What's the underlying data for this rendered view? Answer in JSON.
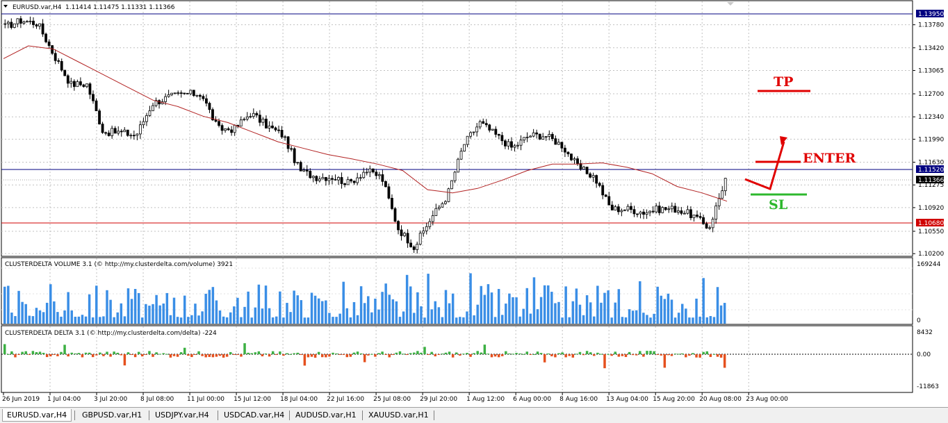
{
  "window": {
    "title": "EURUSD.var,H4",
    "ohlc": "1.11414 1.11475 1.11331 1.11366"
  },
  "main_price_axis": {
    "ticks": [
      "1.13780",
      "1.13420",
      "1.13065",
      "1.12700",
      "1.12340",
      "1.11990",
      "1.11630",
      "1.11275",
      "1.10920",
      "1.10550",
      "1.10200"
    ],
    "labels": [
      {
        "text": "1.13950",
        "color": "#000080"
      },
      {
        "text": "1.11520",
        "color": "#000080"
      },
      {
        "text": "1.11366",
        "color": "#000000"
      },
      {
        "text": "1.10680",
        "color": "#d00000"
      }
    ]
  },
  "volume_panel": {
    "title": "CLUSTERDELTA VOLUME 3.1 (© http://my.clusterdelta.com/volume) 3921",
    "axis_max": "169244",
    "axis_min": "0"
  },
  "delta_panel": {
    "title": "CLUSTERDELTA DELTA 3.1 (© http://my.clusterdelta.com/delta) -224",
    "axis_top": "8432",
    "axis_zero": "0.00",
    "axis_bottom": "-11863"
  },
  "time_axis": [
    "26 Jun 2019",
    "1 Jul 04:00",
    "3 Jul 20:00",
    "8 Jul 08:00",
    "11 Jul 00:00",
    "15 Jul 12:00",
    "18 Jul 04:00",
    "22 Jul 16:00",
    "25 Jul 08:00",
    "29 Jul 20:00",
    "1 Aug 12:00",
    "6 Aug 00:00",
    "8 Aug 16:00",
    "13 Aug 04:00",
    "15 Aug 20:00",
    "20 Aug 08:00",
    "23 Aug 00:00"
  ],
  "annotations": {
    "tp": "TP",
    "enter": "ENTER",
    "sl": "SL"
  },
  "tabs": [
    "EURUSD.var,H4",
    "GBPUSD.var,H1",
    "USDJPY.var,H4",
    "USDCAD.var,H4",
    "AUDUSD.var,H1",
    "XAUUSD.var,H1"
  ],
  "colors": {
    "candle": "#000000",
    "moving_average": "#b22222",
    "volume_bar": "#3a8ee6",
    "delta_positive": "#3cb043",
    "delta_negative": "#e5501e",
    "resistance_line": "#000080",
    "support_line": "#d00000",
    "annotation_red": "#e00000",
    "annotation_green": "#2db82d"
  },
  "chart_data": {
    "type": "candlestick",
    "symbol": "EURUSD.var",
    "timeframe": "H4",
    "horizontal_levels": [
      1.1395,
      1.1152,
      1.1068
    ],
    "current_price": 1.11366,
    "close_path": [
      {
        "t": "26 Jun 2019",
        "price": 1.1375
      },
      {
        "t": "27 Jun",
        "price": 1.1385
      },
      {
        "t": "28 Jun",
        "price": 1.138
      },
      {
        "t": "1 Jul 04:00",
        "price": 1.133
      },
      {
        "t": "2 Jul",
        "price": 1.1285
      },
      {
        "t": "3 Jul 20:00",
        "price": 1.1285
      },
      {
        "t": "5 Jul",
        "price": 1.121
      },
      {
        "t": "8 Jul 08:00",
        "price": 1.121
      },
      {
        "t": "9 Jul",
        "price": 1.1205
      },
      {
        "t": "10 Jul",
        "price": 1.1255
      },
      {
        "t": "11 Jul 00:00",
        "price": 1.1265
      },
      {
        "t": "12 Jul",
        "price": 1.127
      },
      {
        "t": "15 Jul 12:00",
        "price": 1.127
      },
      {
        "t": "16 Jul",
        "price": 1.1215
      },
      {
        "t": "17 Jul",
        "price": 1.1215
      },
      {
        "t": "18 Jul 04:00",
        "price": 1.124
      },
      {
        "t": "19 Jul",
        "price": 1.122
      },
      {
        "t": "22 Jul 16:00",
        "price": 1.1205
      },
      {
        "t": "23 Jul",
        "price": 1.115
      },
      {
        "t": "24 Jul",
        "price": 1.114
      },
      {
        "t": "25 Jul 08:00",
        "price": 1.114
      },
      {
        "t": "26 Jul",
        "price": 1.113
      },
      {
        "t": "29 Jul 20:00",
        "price": 1.115
      },
      {
        "t": "30 Jul",
        "price": 1.114
      },
      {
        "t": "31 Jul",
        "price": 1.106
      },
      {
        "t": "1 Aug",
        "price": 1.103
      },
      {
        "t": "1 Aug 12:00",
        "price": 1.1075
      },
      {
        "t": "2 Aug",
        "price": 1.111
      },
      {
        "t": "5 Aug",
        "price": 1.119
      },
      {
        "t": "6 Aug 00:00",
        "price": 1.1225
      },
      {
        "t": "7 Aug",
        "price": 1.1205
      },
      {
        "t": "8 Aug 16:00",
        "price": 1.1185
      },
      {
        "t": "9 Aug",
        "price": 1.1205
      },
      {
        "t": "12 Aug",
        "price": 1.1205
      },
      {
        "t": "13 Aug 04:00",
        "price": 1.119
      },
      {
        "t": "14 Aug",
        "price": 1.1155
      },
      {
        "t": "14 Aug b",
        "price": 1.114
      },
      {
        "t": "15 Aug 20:00",
        "price": 1.109
      },
      {
        "t": "16 Aug",
        "price": 1.109
      },
      {
        "t": "19 Aug",
        "price": 1.1085
      },
      {
        "t": "20 Aug 08:00",
        "price": 1.109
      },
      {
        "t": "21 Aug",
        "price": 1.109
      },
      {
        "t": "22 Aug",
        "price": 1.108
      },
      {
        "t": "23 Aug 00:00",
        "price": 1.106
      },
      {
        "t": "23 Aug b",
        "price": 1.1137
      }
    ],
    "moving_average_path": [
      1.1325,
      1.1345,
      1.134,
      1.132,
      1.13,
      1.128,
      1.126,
      1.125,
      1.1235,
      1.1225,
      1.121,
      1.1195,
      1.1185,
      1.1175,
      1.1168,
      1.116,
      1.115,
      1.112,
      1.1115,
      1.1122,
      1.1135,
      1.115,
      1.116,
      1.116,
      1.1162,
      1.1155,
      1.1145,
      1.1125,
      1.1115,
      1.1102
    ]
  }
}
